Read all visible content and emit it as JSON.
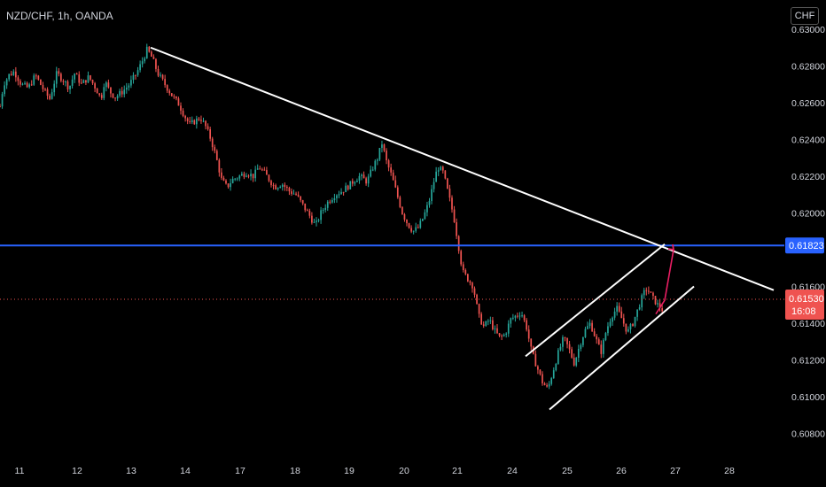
{
  "header": {
    "symbol": "NZD/CHF, 1h, OANDA",
    "currency_button": "CHF"
  },
  "colors": {
    "up": "#26a69a",
    "down": "#ef5350",
    "trend": "#ffffff",
    "level": "#2962ff",
    "arrow": "#e91e63",
    "price_line": "#ef5350"
  },
  "chart_data": {
    "type": "candlestick",
    "symbol": "NZD/CHF",
    "timeframe": "1h",
    "source": "OANDA",
    "x_ticks": [
      "11",
      "12",
      "13",
      "14",
      "17",
      "18",
      "19",
      "20",
      "21",
      "24",
      "25",
      "26",
      "27",
      "28"
    ],
    "y_ticks": [
      "0.63000",
      "0.62800",
      "0.62600",
      "0.62400",
      "0.62200",
      "0.62000",
      "0.61600",
      "0.61400",
      "0.61200",
      "0.61000",
      "0.60800"
    ],
    "ylim": [
      0.6074,
      0.6303
    ],
    "price_path": [
      [
        0,
        0.6258
      ],
      [
        4,
        0.627
      ],
      [
        10,
        0.6275
      ],
      [
        16,
        0.6277
      ],
      [
        24,
        0.627
      ],
      [
        32,
        0.6268
      ],
      [
        40,
        0.6275
      ],
      [
        48,
        0.6268
      ],
      [
        56,
        0.6262
      ],
      [
        64,
        0.6276
      ],
      [
        72,
        0.6272
      ],
      [
        78,
        0.6268
      ],
      [
        84,
        0.6276
      ],
      [
        92,
        0.627
      ],
      [
        100,
        0.6274
      ],
      [
        108,
        0.6268
      ],
      [
        114,
        0.6262
      ],
      [
        118,
        0.6272
      ],
      [
        124,
        0.6266
      ],
      [
        130,
        0.6263
      ],
      [
        138,
        0.6266
      ],
      [
        146,
        0.627
      ],
      [
        154,
        0.6276
      ],
      [
        160,
        0.6282
      ],
      [
        166,
        0.6289
      ],
      [
        172,
        0.6284
      ],
      [
        178,
        0.6276
      ],
      [
        186,
        0.627
      ],
      [
        194,
        0.6264
      ],
      [
        202,
        0.6259
      ],
      [
        208,
        0.6253
      ],
      [
        214,
        0.6248
      ],
      [
        220,
        0.625
      ],
      [
        226,
        0.6252
      ],
      [
        232,
        0.6247
      ],
      [
        238,
        0.624
      ],
      [
        244,
        0.623
      ],
      [
        250,
        0.6218
      ],
      [
        256,
        0.6214
      ],
      [
        262,
        0.6218
      ],
      [
        270,
        0.622
      ],
      [
        278,
        0.6222
      ],
      [
        286,
        0.622
      ],
      [
        292,
        0.6225
      ],
      [
        298,
        0.6222
      ],
      [
        304,
        0.6218
      ],
      [
        310,
        0.6214
      ],
      [
        318,
        0.6216
      ],
      [
        326,
        0.6212
      ],
      [
        334,
        0.621
      ],
      [
        342,
        0.6204
      ],
      [
        350,
        0.6198
      ],
      [
        356,
        0.6193
      ],
      [
        362,
        0.62
      ],
      [
        370,
        0.6206
      ],
      [
        378,
        0.621
      ],
      [
        386,
        0.6212
      ],
      [
        394,
        0.6215
      ],
      [
        400,
        0.6218
      ],
      [
        406,
        0.622
      ],
      [
        414,
        0.6217
      ],
      [
        420,
        0.6224
      ],
      [
        426,
        0.623
      ],
      [
        431,
        0.6238
      ],
      [
        436,
        0.6228
      ],
      [
        442,
        0.622
      ],
      [
        448,
        0.621
      ],
      [
        454,
        0.62
      ],
      [
        460,
        0.6194
      ],
      [
        466,
        0.619
      ],
      [
        472,
        0.6192
      ],
      [
        478,
        0.6198
      ],
      [
        484,
        0.6206
      ],
      [
        490,
        0.6218
      ],
      [
        494,
        0.6225
      ],
      [
        500,
        0.6222
      ],
      [
        506,
        0.621
      ],
      [
        512,
        0.6198
      ],
      [
        518,
        0.618
      ],
      [
        522,
        0.6168
      ],
      [
        528,
        0.6164
      ],
      [
        534,
        0.616
      ],
      [
        540,
        0.6144
      ],
      [
        546,
        0.6138
      ],
      [
        552,
        0.6142
      ],
      [
        558,
        0.6136
      ],
      [
        564,
        0.6132
      ],
      [
        570,
        0.6134
      ],
      [
        576,
        0.6142
      ],
      [
        582,
        0.6144
      ],
      [
        588,
        0.6146
      ],
      [
        594,
        0.6138
      ],
      [
        600,
        0.6124
      ],
      [
        606,
        0.6116
      ],
      [
        612,
        0.6108
      ],
      [
        618,
        0.6104
      ],
      [
        624,
        0.6114
      ],
      [
        630,
        0.6124
      ],
      [
        636,
        0.6132
      ],
      [
        642,
        0.6126
      ],
      [
        648,
        0.6118
      ],
      [
        654,
        0.6128
      ],
      [
        660,
        0.6136
      ],
      [
        666,
        0.614
      ],
      [
        672,
        0.6132
      ],
      [
        678,
        0.6124
      ],
      [
        684,
        0.6136
      ],
      [
        690,
        0.6144
      ],
      [
        696,
        0.6148
      ],
      [
        702,
        0.6142
      ],
      [
        708,
        0.6135
      ],
      [
        714,
        0.614
      ],
      [
        720,
        0.6148
      ],
      [
        726,
        0.6156
      ],
      [
        730,
        0.6159
      ],
      [
        736,
        0.6154
      ],
      [
        742,
        0.615
      ],
      [
        748,
        0.6147
      ]
    ],
    "trendlines": [
      {
        "name": "descending-resistance",
        "from": [
          170,
          0.629
        ],
        "to": [
          873,
          0.6158
        ]
      },
      {
        "name": "channel-upper",
        "from": [
          593,
          0.6122
        ],
        "to": [
          750,
          0.6183
        ]
      },
      {
        "name": "channel-lower",
        "from": [
          620,
          0.6093
        ],
        "to": [
          783,
          0.616
        ]
      }
    ],
    "levels": [
      {
        "name": "horizontal-level",
        "price": 0.61823,
        "label": "0.61823"
      }
    ],
    "projection": [
      [
        740,
        0.6145
      ],
      [
        750,
        0.61525
      ],
      [
        760,
        0.618
      ]
    ],
    "current_price": {
      "value": 0.6153,
      "label": "0.61530",
      "countdown": "16:08"
    }
  }
}
